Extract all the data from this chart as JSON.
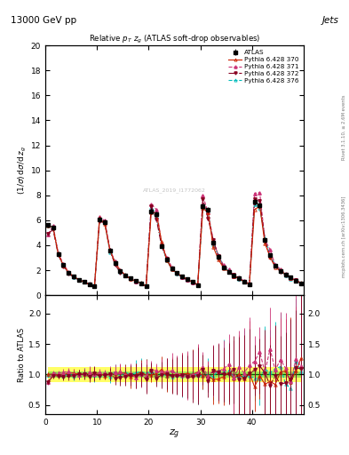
{
  "title_top": "13000 GeV pp",
  "title_right": "Jets",
  "plot_title": "Relative p_{T} z_{g} (ATLAS soft-drop observables)",
  "ylabel_main": "(1/σ) dσ/d z_{g}",
  "ylabel_ratio": "Ratio to ATLAS",
  "xlabel": "z_{g}",
  "rivet_text": "Rivet 3.1.10, ≥ 2.6M events",
  "arxiv_text": "mcplots.cern.ch [arXiv:1306.3436]",
  "watermark": "ATLAS_2019_I1772062",
  "ylim_main": [
    0,
    20
  ],
  "ylim_ratio": [
    0.35,
    2.3
  ],
  "xlim": [
    0,
    50
  ],
  "yticks_main": [
    0,
    2,
    4,
    6,
    8,
    10,
    12,
    14,
    16,
    18,
    20
  ],
  "yticks_ratio": [
    0.5,
    1.0,
    1.5,
    2.0
  ],
  "xticks": [
    0,
    10,
    20,
    30,
    40
  ],
  "background_color": "#ffffff",
  "col_370": "#cc2200",
  "col_371": "#cc3377",
  "col_372": "#880022",
  "col_376": "#00bbbb",
  "green_band_lo": 0.95,
  "green_band_hi": 1.05,
  "yellow_band_lo": 0.88,
  "yellow_band_hi": 1.12
}
